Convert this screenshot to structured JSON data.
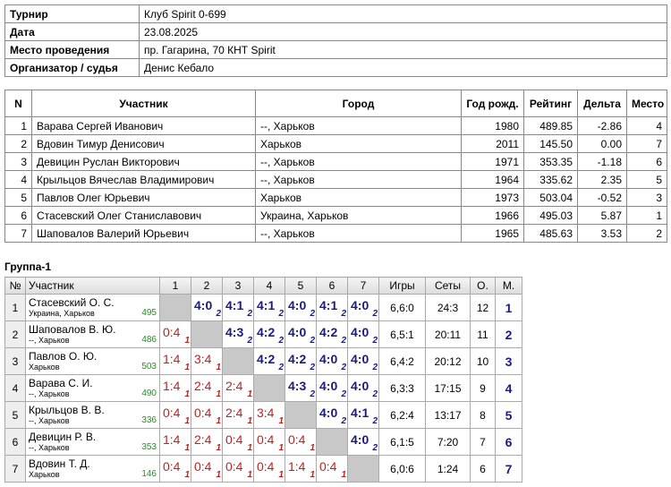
{
  "info": {
    "rows": [
      [
        "Турнир",
        "Клуб Spirit 0-699"
      ],
      [
        "Дата",
        "23.08.2025"
      ],
      [
        "Место проведения",
        "пр. Гагарина, 70 КНТ Spirit"
      ],
      [
        "Организатор / судья",
        "Денис Кебало"
      ]
    ]
  },
  "players": {
    "header": [
      "N",
      "Участник",
      "Город",
      "Год рожд.",
      "Рейтинг",
      "Дельта",
      "Место"
    ],
    "rows": [
      [
        "1",
        "Варава Сергей Иванович",
        "--, Харьков",
        "1980",
        "489.85",
        "-2.86",
        "4"
      ],
      [
        "2",
        "Вдовин Тимур Денисович",
        "Харьков",
        "2011",
        "145.50",
        "0.00",
        "7"
      ],
      [
        "3",
        "Девицин Руслан Викторович",
        "--, Харьков",
        "1971",
        "353.35",
        "-1.18",
        "6"
      ],
      [
        "4",
        "Крыльцов Вячеслав Владимирович",
        "--, Харьков",
        "1964",
        "335.62",
        "2.35",
        "5"
      ],
      [
        "5",
        "Павлов Олег Юрьевич",
        "Харьков",
        "1973",
        "503.04",
        "-0.52",
        "3"
      ],
      [
        "6",
        "Стасевский Олег Станиславович",
        "Украина, Харьков",
        "1966",
        "495.03",
        "5.87",
        "1"
      ],
      [
        "7",
        "Шаповалов Валерий Юрьевич",
        "--, Харьков",
        "1965",
        "485.63",
        "3.53",
        "2"
      ]
    ]
  },
  "group": {
    "title": "Группа-1",
    "header": [
      "№",
      "Участник",
      "1",
      "2",
      "3",
      "4",
      "5",
      "6",
      "7",
      "Игры",
      "Сеты",
      "О.",
      "М."
    ],
    "rows": [
      {
        "n": "1",
        "name": "Стасевский О. С.",
        "city": "Украина, Харьков",
        "rating": "495",
        "cells": [
          null,
          {
            "score": "4:0",
            "mark": "2"
          },
          {
            "score": "4:1",
            "mark": "2"
          },
          {
            "score": "4:1",
            "mark": "2"
          },
          {
            "score": "4:0",
            "mark": "2"
          },
          {
            "score": "4:1",
            "mark": "2"
          },
          {
            "score": "4:0",
            "mark": "2"
          }
        ],
        "games": "6,6:0",
        "sets": "24:3",
        "points": "12",
        "place": "1"
      },
      {
        "n": "2",
        "name": "Шаповалов В. Ю.",
        "city": "--, Харьков",
        "rating": "486",
        "cells": [
          {
            "score": "0:4",
            "mark": "1"
          },
          null,
          {
            "score": "4:3",
            "mark": "2"
          },
          {
            "score": "4:2",
            "mark": "2"
          },
          {
            "score": "4:0",
            "mark": "2"
          },
          {
            "score": "4:2",
            "mark": "2"
          },
          {
            "score": "4:0",
            "mark": "2"
          }
        ],
        "games": "6,5:1",
        "sets": "20:11",
        "points": "11",
        "place": "2"
      },
      {
        "n": "3",
        "name": "Павлов О. Ю.",
        "city": "Харьков",
        "rating": "503",
        "cells": [
          {
            "score": "1:4",
            "mark": "1"
          },
          {
            "score": "3:4",
            "mark": "1"
          },
          null,
          {
            "score": "4:2",
            "mark": "2"
          },
          {
            "score": "4:2",
            "mark": "2"
          },
          {
            "score": "4:0",
            "mark": "2"
          },
          {
            "score": "4:0",
            "mark": "2"
          }
        ],
        "games": "6,4:2",
        "sets": "20:12",
        "points": "10",
        "place": "3"
      },
      {
        "n": "4",
        "name": "Варава С. И.",
        "city": "--, Харьков",
        "rating": "490",
        "cells": [
          {
            "score": "1:4",
            "mark": "1"
          },
          {
            "score": "2:4",
            "mark": "1"
          },
          {
            "score": "2:4",
            "mark": "1"
          },
          null,
          {
            "score": "4:3",
            "mark": "2"
          },
          {
            "score": "4:0",
            "mark": "2"
          },
          {
            "score": "4:0",
            "mark": "2"
          }
        ],
        "games": "6,3:3",
        "sets": "17:15",
        "points": "9",
        "place": "4"
      },
      {
        "n": "5",
        "name": "Крыльцов В. В.",
        "city": "--, Харьков",
        "rating": "336",
        "cells": [
          {
            "score": "0:4",
            "mark": "1"
          },
          {
            "score": "0:4",
            "mark": "1"
          },
          {
            "score": "2:4",
            "mark": "1"
          },
          {
            "score": "3:4",
            "mark": "1"
          },
          null,
          {
            "score": "4:0",
            "mark": "2"
          },
          {
            "score": "4:1",
            "mark": "2"
          }
        ],
        "games": "6,2:4",
        "sets": "13:17",
        "points": "8",
        "place": "5"
      },
      {
        "n": "6",
        "name": "Девицин Р. В.",
        "city": "--, Харьков",
        "rating": "353",
        "cells": [
          {
            "score": "1:4",
            "mark": "1"
          },
          {
            "score": "2:4",
            "mark": "1"
          },
          {
            "score": "0:4",
            "mark": "1"
          },
          {
            "score": "0:4",
            "mark": "1"
          },
          {
            "score": "0:4",
            "mark": "1"
          },
          null,
          {
            "score": "4:0",
            "mark": "2"
          }
        ],
        "games": "6,1:5",
        "sets": "7:20",
        "points": "7",
        "place": "6"
      },
      {
        "n": "7",
        "name": "Вдовин Т. Д.",
        "city": "Харьков",
        "rating": "146",
        "cells": [
          {
            "score": "0:4",
            "mark": "1"
          },
          {
            "score": "0:4",
            "mark": "1"
          },
          {
            "score": "0:4",
            "mark": "1"
          },
          {
            "score": "0:4",
            "mark": "1"
          },
          {
            "score": "1:4",
            "mark": "1"
          },
          {
            "score": "0:4",
            "mark": "1"
          },
          null
        ],
        "games": "6,0:6",
        "sets": "1:24",
        "points": "6",
        "place": "7"
      }
    ]
  }
}
